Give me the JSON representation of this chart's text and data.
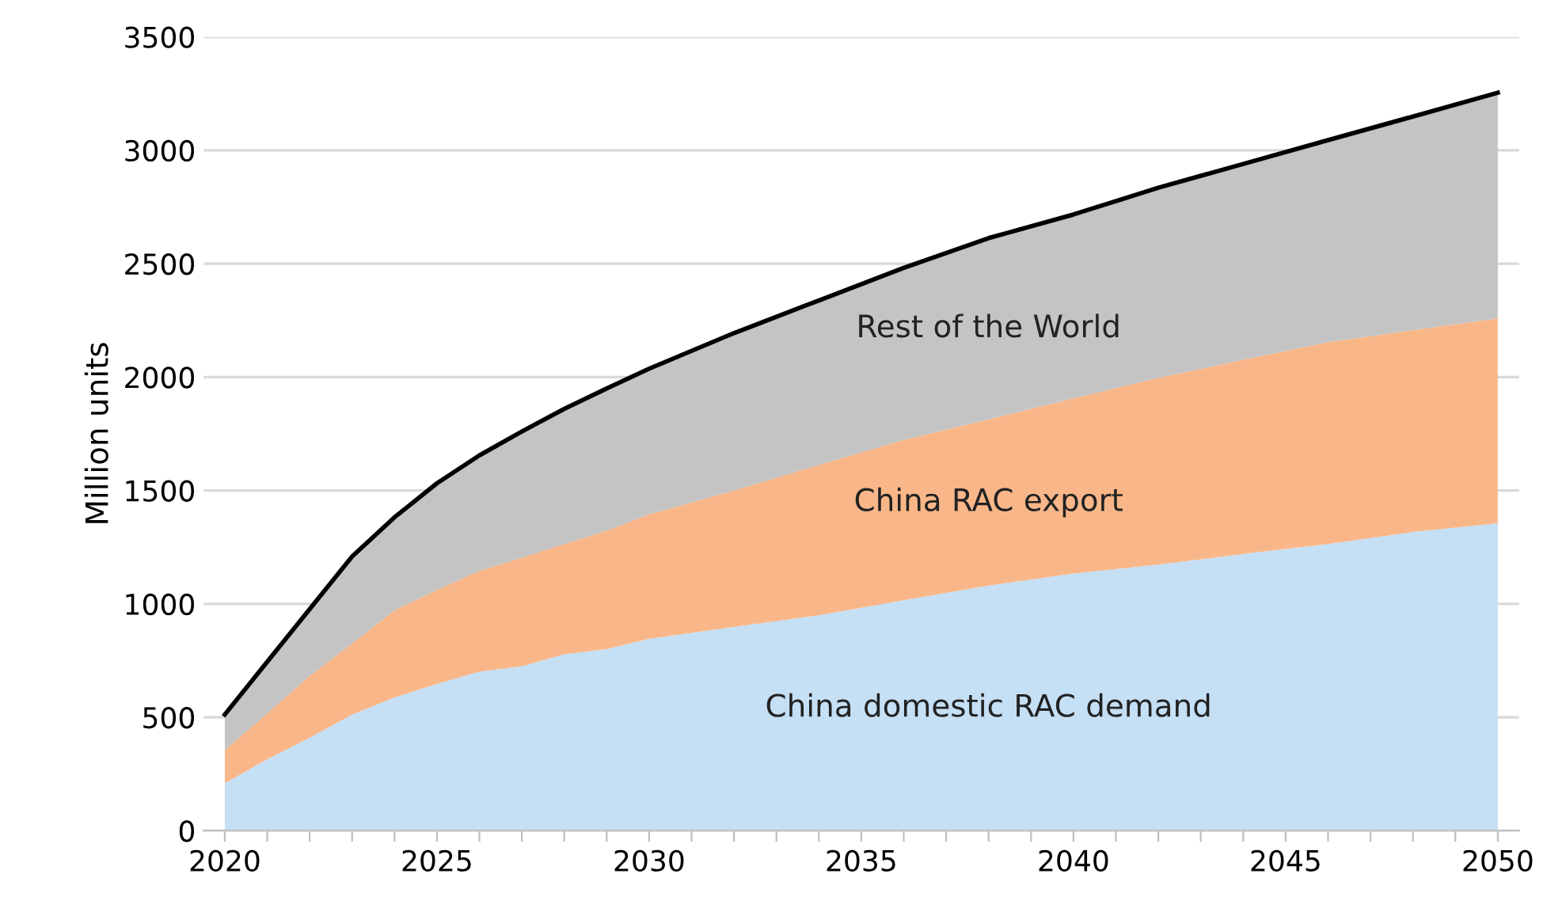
{
  "chart_data": {
    "type": "area",
    "stacked": true,
    "ylabel": "Million units",
    "x": [
      2020,
      2021,
      2022,
      2023,
      2024,
      2025,
      2026,
      2027,
      2028,
      2029,
      2030,
      2032,
      2034,
      2036,
      2038,
      2040,
      2042,
      2044,
      2046,
      2048,
      2050
    ],
    "series": [
      {
        "name": "China domestic RAC demand",
        "color": "#c5dff5",
        "values": [
          209,
          315,
          410,
          512,
          588,
          647,
          701,
          725,
          778,
          801,
          846,
          898,
          950,
          1016,
          1081,
          1134,
          1173,
          1220,
          1264,
          1317,
          1356
        ]
      },
      {
        "name": "China RAC export",
        "color": "#f9b789",
        "values": [
          147,
          202,
          273,
          313,
          384,
          415,
          444,
          479,
          486,
          522,
          549,
          602,
          663,
          707,
          733,
          772,
          824,
          856,
          890,
          890,
          903
        ]
      },
      {
        "name": "Rest of the World",
        "color": "#c4c4c4",
        "values": [
          156,
          228,
          294,
          384,
          410,
          470,
          510,
          556,
          596,
          627,
          642,
          694,
          725,
          759,
          799,
          811,
          838,
          864,
          891,
          942,
          995
        ]
      }
    ],
    "xlim": [
      2019.5,
      2050.5
    ],
    "xticks": [
      2020,
      {
        "value": 2021,
        "label": null
      },
      {
        "value": 2022,
        "label": null
      },
      {
        "value": 2023,
        "label": null
      },
      {
        "value": 2024,
        "label": null
      },
      2025,
      {
        "value": 2026,
        "label": null
      },
      {
        "value": 2027,
        "label": null
      },
      {
        "value": 2028,
        "label": null
      },
      {
        "value": 2029,
        "label": null
      },
      2030,
      {
        "value": 2031,
        "label": null
      },
      {
        "value": 2032,
        "label": null
      },
      {
        "value": 2033,
        "label": null
      },
      {
        "value": 2034,
        "label": null
      },
      2035,
      {
        "value": 2036,
        "label": null
      },
      {
        "value": 2037,
        "label": null
      },
      {
        "value": 2038,
        "label": null
      },
      {
        "value": 2039,
        "label": null
      },
      2040,
      {
        "value": 2041,
        "label": null
      },
      {
        "value": 2042,
        "label": null
      },
      {
        "value": 2043,
        "label": null
      },
      {
        "value": 2044,
        "label": null
      },
      2045,
      {
        "value": 2046,
        "label": null
      },
      {
        "value": 2047,
        "label": null
      },
      {
        "value": 2048,
        "label": null
      },
      {
        "value": 2049,
        "label": null
      },
      2050
    ],
    "ylim": [
      0,
      3500
    ],
    "yticks": [
      0,
      500,
      1000,
      1500,
      2000,
      2500,
      3000,
      3500
    ],
    "grid": "y",
    "legend": false
  }
}
